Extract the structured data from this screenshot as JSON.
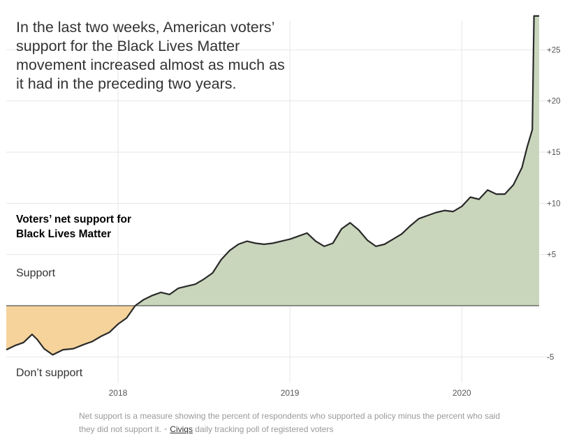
{
  "headline": "In the last two weeks, American voters’ support for the Black Lives Matter movement increased almost as much as it had in the preceding two years.",
  "chart_title": "Voters’ net support for Black Lives Matter",
  "label_support": "Support",
  "label_dont_support": "Don’t support",
  "footnote": {
    "text": "Net support is a measure showing the percent of respondents who supported a policy minus the percent who said they did not support it.",
    "separator": "•",
    "source_link": "Civiqs",
    "source_rest": "daily tracking poll of registered voters"
  },
  "colors": {
    "positive_fill": "#c9d6bc",
    "negative_fill": "#f5d39b",
    "line": "#2a2a2a",
    "zero_line": "#555555",
    "grid": "#e6e6e6"
  },
  "chart_data": {
    "type": "area",
    "title": "Voters’ net support for Black Lives Matter",
    "xlabel": "",
    "ylabel": "",
    "x_ticks": [
      {
        "label": "2018",
        "year": 2018.0
      },
      {
        "label": "2019",
        "year": 2019.0
      },
      {
        "label": "2020",
        "year": 2020.0
      }
    ],
    "y_ticks": [
      {
        "label": "+25",
        "value": 25
      },
      {
        "label": "+20",
        "value": 20
      },
      {
        "label": "+15",
        "value": 15
      },
      {
        "label": "+10",
        "value": 10
      },
      {
        "label": "+5",
        "value": 5
      },
      {
        "label": "-5",
        "value": -5
      }
    ],
    "ylim": [
      -7.5,
      28.5
    ],
    "xlim": [
      2017.35,
      2020.45
    ],
    "grid": true,
    "series": [
      {
        "values": [
          [
            2017.35,
            -4.3
          ],
          [
            2017.4,
            -3.9
          ],
          [
            2017.45,
            -3.6
          ],
          [
            2017.5,
            -2.8
          ],
          [
            2017.53,
            -3.3
          ],
          [
            2017.57,
            -4.2
          ],
          [
            2017.62,
            -4.8
          ],
          [
            2017.68,
            -4.3
          ],
          [
            2017.74,
            -4.2
          ],
          [
            2017.8,
            -3.8
          ],
          [
            2017.85,
            -3.5
          ],
          [
            2017.9,
            -3.0
          ],
          [
            2017.95,
            -2.6
          ],
          [
            2018.0,
            -1.8
          ],
          [
            2018.05,
            -1.2
          ],
          [
            2018.1,
            0.0
          ],
          [
            2018.15,
            0.6
          ],
          [
            2018.2,
            1.0
          ],
          [
            2018.25,
            1.3
          ],
          [
            2018.3,
            1.1
          ],
          [
            2018.35,
            1.7
          ],
          [
            2018.4,
            1.9
          ],
          [
            2018.45,
            2.1
          ],
          [
            2018.5,
            2.6
          ],
          [
            2018.55,
            3.2
          ],
          [
            2018.6,
            4.5
          ],
          [
            2018.65,
            5.4
          ],
          [
            2018.7,
            6.0
          ],
          [
            2018.75,
            6.3
          ],
          [
            2018.8,
            6.1
          ],
          [
            2018.85,
            6.0
          ],
          [
            2018.9,
            6.1
          ],
          [
            2018.95,
            6.3
          ],
          [
            2019.0,
            6.5
          ],
          [
            2019.05,
            6.8
          ],
          [
            2019.1,
            7.1
          ],
          [
            2019.15,
            6.3
          ],
          [
            2019.2,
            5.8
          ],
          [
            2019.25,
            6.1
          ],
          [
            2019.3,
            7.5
          ],
          [
            2019.35,
            8.1
          ],
          [
            2019.4,
            7.4
          ],
          [
            2019.45,
            6.4
          ],
          [
            2019.5,
            5.8
          ],
          [
            2019.55,
            6.0
          ],
          [
            2019.6,
            6.5
          ],
          [
            2019.65,
            7.0
          ],
          [
            2019.7,
            7.8
          ],
          [
            2019.75,
            8.5
          ],
          [
            2019.8,
            8.8
          ],
          [
            2019.85,
            9.1
          ],
          [
            2019.9,
            9.3
          ],
          [
            2019.95,
            9.2
          ],
          [
            2020.0,
            9.7
          ],
          [
            2020.05,
            10.6
          ],
          [
            2020.1,
            10.4
          ],
          [
            2020.15,
            11.3
          ],
          [
            2020.2,
            10.9
          ],
          [
            2020.25,
            10.9
          ],
          [
            2020.3,
            11.8
          ],
          [
            2020.35,
            13.5
          ],
          [
            2020.38,
            15.5
          ],
          [
            2020.41,
            17.2
          ],
          [
            2020.42,
            28.3
          ],
          [
            2020.45,
            28.3
          ]
        ]
      }
    ]
  }
}
